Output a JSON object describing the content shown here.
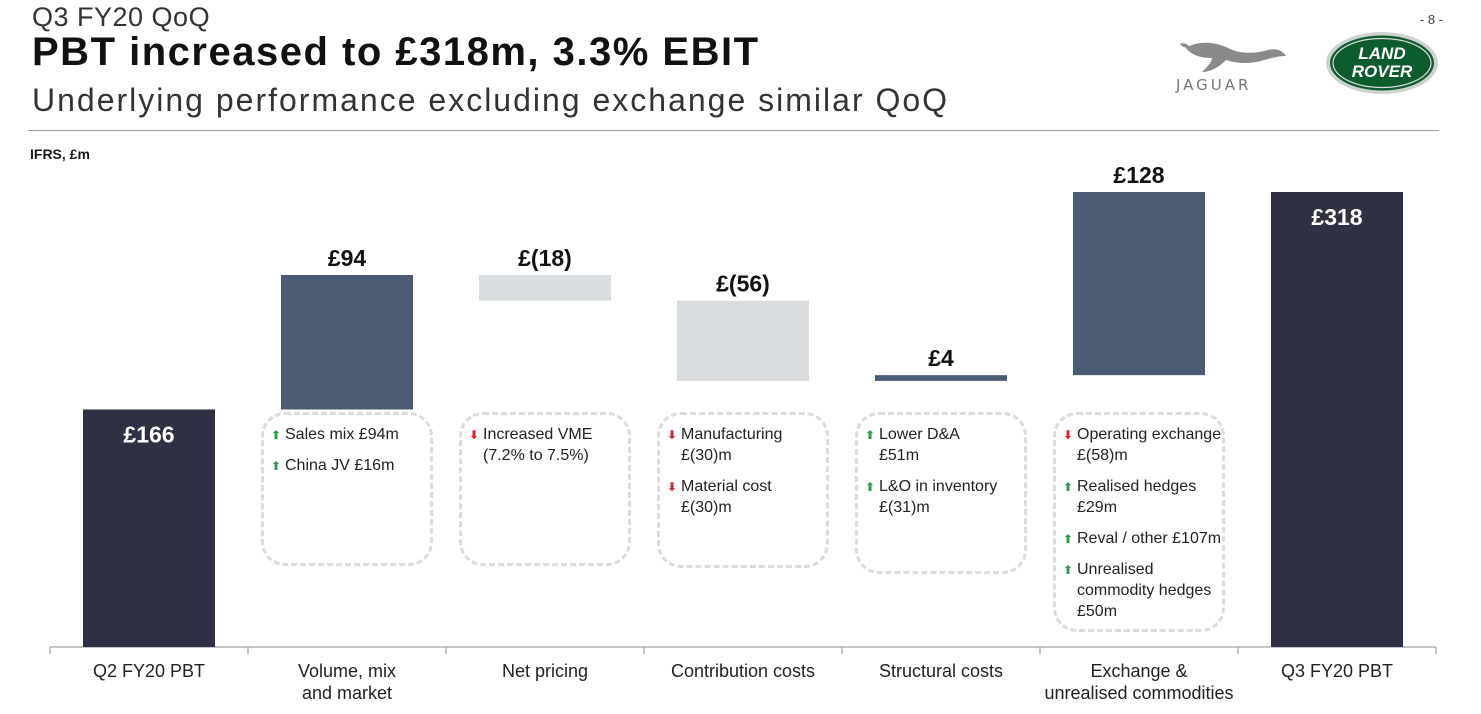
{
  "header": {
    "small_title": "Q3 FY20 QoQ",
    "main_title": "PBT increased to £318m, 3.3% EBIT",
    "subtitle": "Underlying performance excluding exchange similar QoQ",
    "page_number": "- 8 -",
    "unit_label": "IFRS, £m"
  },
  "logos": {
    "jaguar": "JAGUAR",
    "land_rover_line1": "LAND",
    "land_rover_line2": "ROVER"
  },
  "colors": {
    "total": "#2f3044",
    "increase": "#4b5b73",
    "decrease": "#d9dcde",
    "axis": "#888888",
    "label_light": "#ffffff",
    "label_dark": "#111111"
  },
  "chart_data": {
    "type": "bar",
    "subtype": "waterfall",
    "title": "PBT increased to £318m, 3.3% EBIT",
    "ylabel": "IFRS, £m",
    "ylim": [
      0,
      345
    ],
    "categories": [
      "Q2 FY20 PBT",
      "Volume, mix and market",
      "Net pricing",
      "Contribution costs",
      "Structural costs",
      "Exchange & unrealised commodities",
      "Q3 FY20 PBT"
    ],
    "category_lines": [
      [
        "Q2 FY20 PBT"
      ],
      [
        "Volume, mix",
        "and market"
      ],
      [
        "Net pricing"
      ],
      [
        "Contribution costs"
      ],
      [
        "Structural costs"
      ],
      [
        "Exchange &",
        "unrealised commodities"
      ],
      [
        "Q3 FY20 PBT"
      ]
    ],
    "values": [
      166,
      94,
      -18,
      -56,
      4,
      128,
      318
    ],
    "kinds": [
      "total",
      "delta",
      "delta",
      "delta",
      "delta",
      "delta",
      "total"
    ],
    "value_labels": [
      "£166",
      "£94",
      "£(18)",
      "£(56)",
      "£4",
      "£128",
      "£318"
    ]
  },
  "annotations": [
    {
      "category": "Volume, mix and market",
      "items": [
        {
          "dir": "up",
          "lines": [
            "Sales mix £94m"
          ]
        },
        {
          "dir": "up",
          "lines": [
            "China JV £16m"
          ]
        }
      ]
    },
    {
      "category": "Net pricing",
      "items": [
        {
          "dir": "down",
          "lines": [
            "Increased VME",
            "(7.2% to 7.5%)"
          ]
        }
      ]
    },
    {
      "category": "Contribution costs",
      "items": [
        {
          "dir": "down",
          "lines": [
            "Manufacturing",
            "£(30)m"
          ]
        },
        {
          "dir": "down",
          "lines": [
            "Material cost",
            "£(30)m"
          ]
        }
      ]
    },
    {
      "category": "Structural costs",
      "items": [
        {
          "dir": "up",
          "lines": [
            "Lower D&A",
            "£51m"
          ]
        },
        {
          "dir": "up",
          "lines": [
            "L&O in inventory",
            "£(31)m"
          ]
        }
      ]
    },
    {
      "category": "Exchange & unrealised commodities",
      "items": [
        {
          "dir": "down",
          "lines": [
            "Operating exchange",
            "£(58)m"
          ]
        },
        {
          "dir": "up",
          "lines": [
            "Realised hedges",
            "£29m"
          ]
        },
        {
          "dir": "up",
          "lines": [
            "Reval / other £107m"
          ]
        },
        {
          "dir": "up",
          "lines": [
            "Unrealised",
            "commodity hedges",
            "£50m"
          ]
        }
      ]
    }
  ]
}
